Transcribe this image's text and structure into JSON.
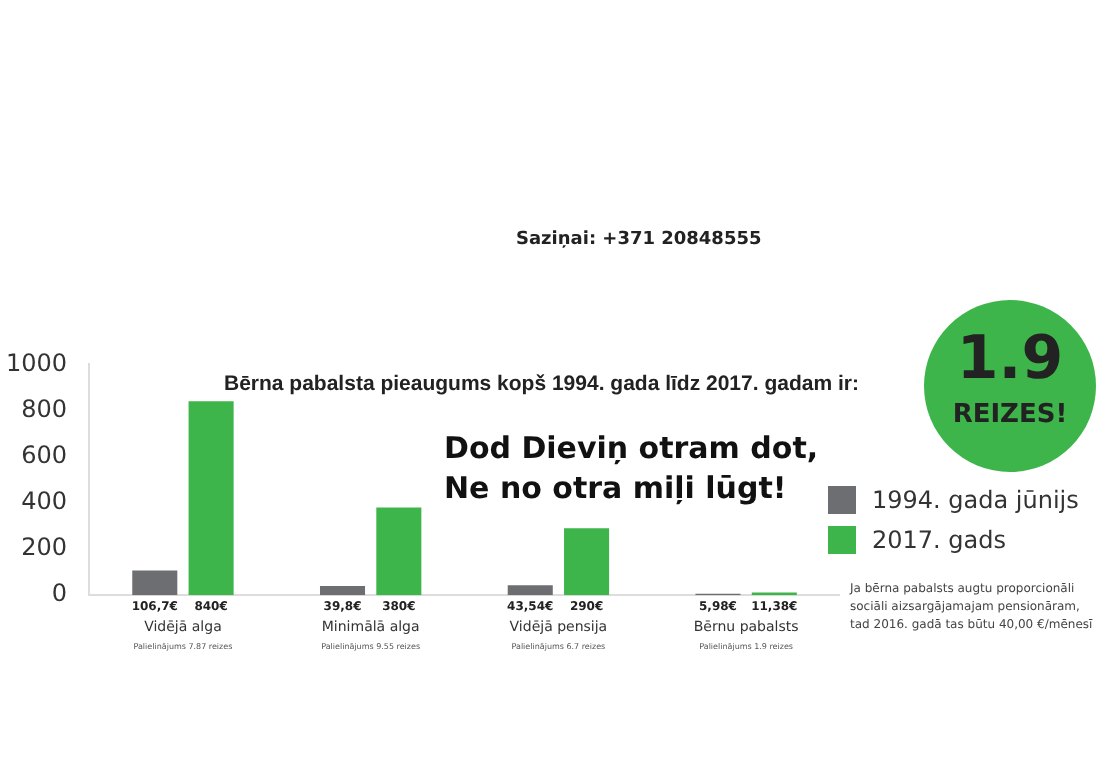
{
  "chart_data": {
    "type": "bar",
    "title": "Bērna pabalsta pieaugums kopš 1994. gada līdz 2017. gadam ir:",
    "categories": [
      "Vidējā alga",
      "Minimālā alga",
      "Vidējā pensija",
      "Bērnu pabalsts"
    ],
    "series": [
      {
        "name": "1994. gada jūnijs",
        "color": "#6d6e71",
        "values": [
          106.7,
          39.8,
          43.54,
          5.98
        ],
        "value_labels": [
          "106,7€",
          "39,8€",
          "43,54€",
          "5,98€"
        ]
      },
      {
        "name": "2017. gads",
        "color": "#3db54a",
        "values": [
          840,
          380,
          290,
          11.38
        ],
        "value_labels": [
          "840€",
          "380€",
          "290€",
          "11,38€"
        ]
      }
    ],
    "ylim": [
      0,
      1000
    ],
    "yticks": [
      0,
      200,
      400,
      600,
      800,
      1000
    ],
    "grid": false,
    "legend": "right",
    "annotations": [
      "Dod Dieviņ otram dot,\nNe no otra miļi lūgt!",
      "1.9",
      "REIZES!",
      "Ja bērna pabalsts augtu proporcionāli\nsociāli aizsargājamajam pensionāram,\ntad 2016. gadā tas būtu 40,00 €/mēnesī",
      "Saziņai: +371 20848555",
      "Palielinājums 7.87 reizes",
      "Palielinājums 9.55 reizes",
      "Palielinājums 6.7 reizes",
      "Palielinājums 1.9 reizes"
    ]
  }
}
